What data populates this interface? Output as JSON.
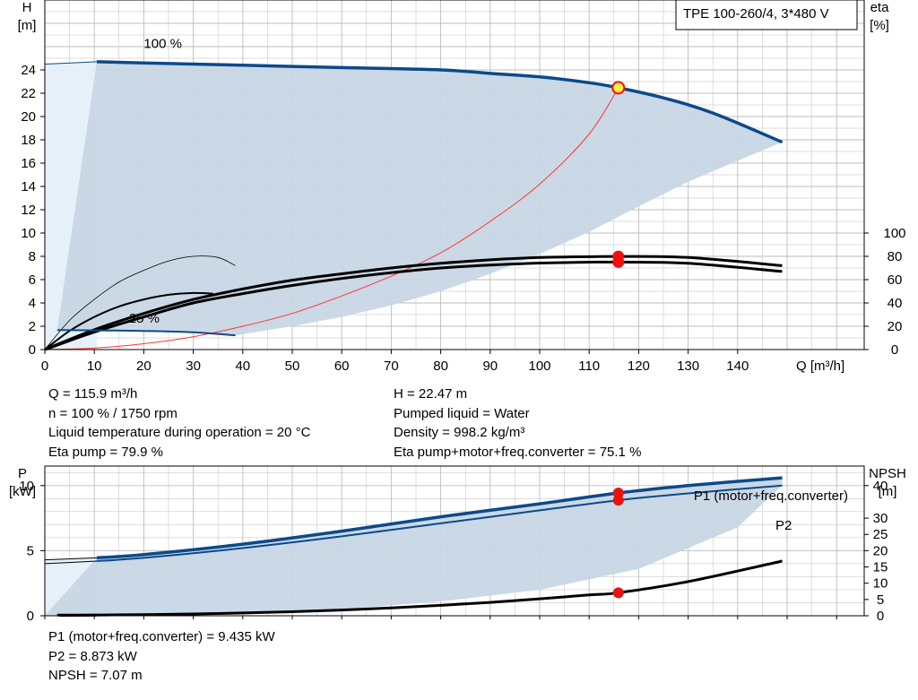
{
  "chart_data": [
    {
      "type": "line",
      "panel": "top",
      "box_label": "TPE 100-260/4, 3*480 V",
      "xlabel": "Q [m³/h]",
      "ylabel": "H\n[m]",
      "y2label": "eta\n[%]",
      "xlim": [
        0,
        160
      ],
      "ylim": [
        0,
        30
      ],
      "y2lim": [
        0,
        300
      ],
      "xticks": [
        0,
        10,
        20,
        30,
        40,
        50,
        60,
        70,
        80,
        90,
        100,
        110,
        120,
        130,
        140
      ],
      "yticks": [
        0,
        2,
        4,
        6,
        8,
        10,
        12,
        14,
        16,
        18,
        20,
        22,
        24
      ],
      "y2ticks": [
        0,
        20,
        40,
        60,
        80,
        100
      ],
      "curve_labels": {
        "full": "100 %",
        "min": "25 %"
      },
      "operating_point": {
        "x": 115.9,
        "y": 22.47
      },
      "eta_point": {
        "x": 115.9,
        "y": 79.9
      },
      "eta_point_total": {
        "x": 115.9,
        "y": 75.1
      },
      "series": [
        {
          "role": "h-100",
          "points": [
            [
              10.5,
              24.7
            ],
            [
              20,
              24.6
            ],
            [
              40,
              24.4
            ],
            [
              60,
              24.2
            ],
            [
              80,
              24.0
            ],
            [
              90,
              23.7
            ],
            [
              100,
              23.4
            ],
            [
              110,
              22.9
            ],
            [
              115.9,
              22.47
            ],
            [
              125,
              21.6
            ],
            [
              135,
              20.3
            ],
            [
              149,
              17.8
            ]
          ]
        },
        {
          "role": "h-25",
          "points": [
            [
              2.5,
              1.68
            ],
            [
              10,
              1.65
            ],
            [
              20,
              1.6
            ],
            [
              30,
              1.48
            ],
            [
              38.5,
              1.22
            ]
          ]
        },
        {
          "role": "system-curve",
          "points": [
            [
              0,
              0
            ],
            [
              10,
              0.12
            ],
            [
              20,
              0.5
            ],
            [
              30,
              1.1
            ],
            [
              40,
              2.0
            ],
            [
              50,
              3.1
            ],
            [
              60,
              4.6
            ],
            [
              70,
              6.3
            ],
            [
              80,
              8.3
            ],
            [
              90,
              11.0
            ],
            [
              100,
              14.2
            ],
            [
              110,
              18.5
            ],
            [
              115.9,
              22.47
            ]
          ]
        },
        {
          "role": "eta-pump-100",
          "points": [
            [
              0,
              0
            ],
            [
              10,
              17
            ],
            [
              20,
              31
            ],
            [
              30,
              43
            ],
            [
              40,
              52
            ],
            [
              50,
              59.5
            ],
            [
              60,
              65
            ],
            [
              70,
              70
            ],
            [
              80,
              74
            ],
            [
              90,
              77
            ],
            [
              100,
              79
            ],
            [
              110,
              79.7
            ],
            [
              115.9,
              79.9
            ],
            [
              130,
              79
            ],
            [
              149,
              72
            ]
          ]
        },
        {
          "role": "eta-total-100",
          "points": [
            [
              0,
              0
            ],
            [
              10,
              15
            ],
            [
              20,
              28
            ],
            [
              30,
              40
            ],
            [
              40,
              48
            ],
            [
              50,
              55
            ],
            [
              60,
              61
            ],
            [
              70,
              66
            ],
            [
              80,
              70
            ],
            [
              90,
              72.5
            ],
            [
              100,
              74.2
            ],
            [
              110,
              75.0
            ],
            [
              115.9,
              75.1
            ],
            [
              130,
              74
            ],
            [
              149,
              67
            ]
          ]
        },
        {
          "role": "eta-pump-25",
          "points": [
            [
              0,
              0
            ],
            [
              5,
              25
            ],
            [
              10,
              43
            ],
            [
              15,
              58
            ],
            [
              20,
              68
            ],
            [
              25,
              76
            ],
            [
              30,
              80
            ],
            [
              35,
              79
            ],
            [
              38.5,
              72
            ]
          ]
        },
        {
          "role": "eta-total-25",
          "points": [
            [
              0,
              0
            ],
            [
              5,
              16
            ],
            [
              10,
              28
            ],
            [
              15,
              37
            ],
            [
              20,
              43
            ],
            [
              25,
              47
            ],
            [
              30,
              48.5
            ],
            [
              34,
              48
            ]
          ]
        },
        {
          "role": "envelope-upper",
          "points": [
            [
              10.5,
              24.7
            ],
            [
              149,
              17.8
            ]
          ]
        },
        {
          "role": "envelope-lower",
          "points": [
            [
              38.5,
              1.22
            ],
            [
              50,
              2.0
            ],
            [
              60,
              2.8
            ],
            [
              70,
              3.8
            ],
            [
              80,
              5.0
            ],
            [
              90,
              6.5
            ],
            [
              100,
              8.2
            ],
            [
              110,
              10.1
            ],
            [
              120,
              12.3
            ],
            [
              130,
              14.4
            ],
            [
              140,
              16.2
            ],
            [
              149,
              17.8
            ]
          ]
        }
      ]
    },
    {
      "type": "line",
      "panel": "bottom",
      "ylabel": "P\n[kW]",
      "y2label": "NPSH\n[m]",
      "xlim": [
        0,
        160
      ],
      "ylim": [
        0,
        11.5
      ],
      "y2lim": [
        0,
        46
      ],
      "yticks": [
        0,
        5,
        10
      ],
      "y2ticks": [
        0,
        5,
        10,
        15,
        20,
        25,
        30,
        40
      ],
      "p1_label": "P1 (motor+freq.converter)",
      "p2_label": "P2",
      "p1_point": {
        "x": 115.9,
        "y": 9.435
      },
      "p2_point": {
        "x": 115.9,
        "y": 8.873
      },
      "npsh_point": {
        "x": 115.9,
        "y": 7.07
      },
      "series": [
        {
          "role": "p1-100",
          "points": [
            [
              10.5,
              4.45
            ],
            [
              20,
              4.7
            ],
            [
              40,
              5.5
            ],
            [
              60,
              6.5
            ],
            [
              80,
              7.6
            ],
            [
              100,
              8.6
            ],
            [
              115.9,
              9.435
            ],
            [
              130,
              10.0
            ],
            [
              149,
              10.6
            ]
          ]
        },
        {
          "role": "p2-100",
          "points": [
            [
              10.5,
              4.2
            ],
            [
              20,
              4.45
            ],
            [
              40,
              5.2
            ],
            [
              60,
              6.1
            ],
            [
              80,
              7.1
            ],
            [
              100,
              8.1
            ],
            [
              115.9,
              8.873
            ],
            [
              130,
              9.4
            ],
            [
              149,
              10.0
            ]
          ]
        },
        {
          "role": "p1-25",
          "points": [
            [
              0,
              4.3
            ],
            [
              10.5,
              4.45
            ]
          ]
        },
        {
          "role": "p2-25",
          "points": [
            [
              0,
              4.0
            ],
            [
              10.5,
              4.2
            ]
          ]
        },
        {
          "role": "npsh",
          "points": [
            [
              3,
              0.1
            ],
            [
              10,
              0.2
            ],
            [
              20,
              0.35
            ],
            [
              30,
              0.55
            ],
            [
              40,
              0.85
            ],
            [
              50,
              1.25
            ],
            [
              60,
              1.75
            ],
            [
              70,
              2.4
            ],
            [
              80,
              3.2
            ],
            [
              90,
              4.1
            ],
            [
              100,
              5.2
            ],
            [
              110,
              6.4
            ],
            [
              115.9,
              7.07
            ],
            [
              130,
              10.5
            ],
            [
              149,
              16.8
            ]
          ]
        },
        {
          "role": "envelope-lower",
          "points": [
            [
              0,
              0.02
            ],
            [
              39,
              0.15
            ],
            [
              60,
              0.5
            ],
            [
              80,
              1.1
            ],
            [
              100,
              2.0
            ],
            [
              120,
              3.6
            ],
            [
              140,
              6.8
            ],
            [
              149,
              10.0
            ]
          ]
        }
      ]
    }
  ],
  "info_top_left": [
    "Q = 115.9 m³/h",
    "n = 100 % / 1750 rpm",
    "Liquid temperature during operation = 20 °C",
    "Eta pump = 79.9 %"
  ],
  "info_top_right": [
    "H = 22.47 m",
    "Pumped liquid = Water",
    "Density = 998.2 kg/m³",
    "Eta pump+motor+freq.converter = 75.1 %"
  ],
  "info_bottom": [
    "P1 (motor+freq.converter) = 9.435 kW",
    "P2 = 8.873 kW",
    "NPSH = 7.07 m"
  ],
  "colors": {
    "curve_blue": "#0b4a8a",
    "area_fill": "#c8d6e5",
    "area_light": "#e6f0f8",
    "grid": "#bdbdbd",
    "eta": "#000000",
    "system": "#ff3333",
    "point_red": "#ee1111",
    "point_yellow": "#ffee44"
  }
}
